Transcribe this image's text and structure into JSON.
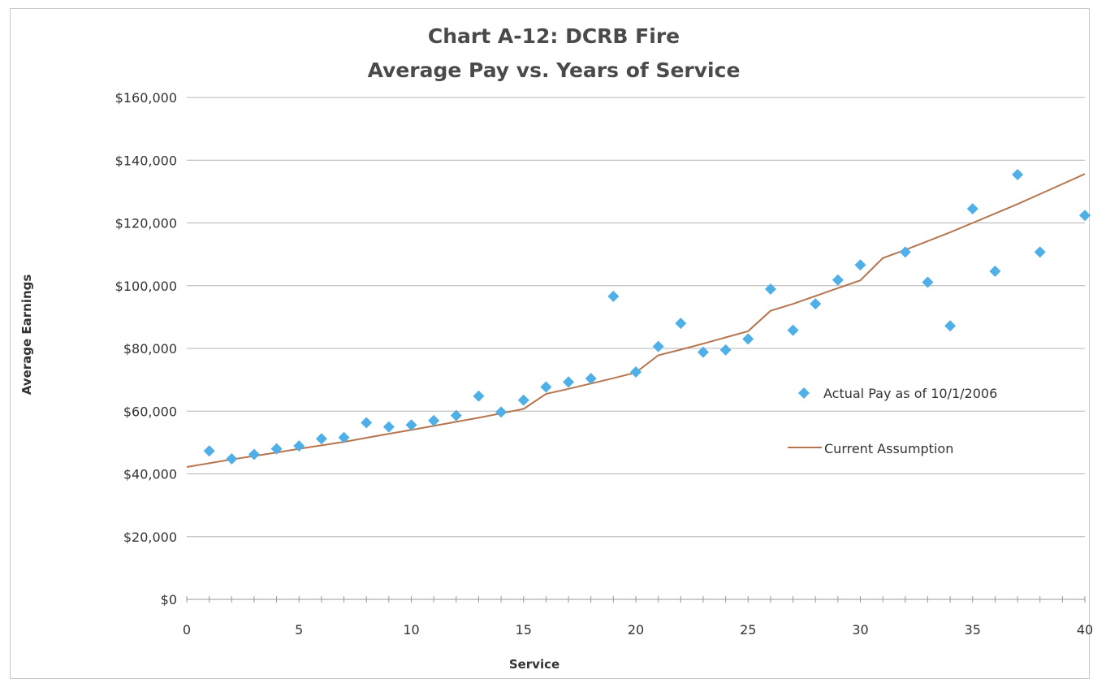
{
  "chart_data": {
    "type": "scatter",
    "title": "Chart A-12: DCRB Fire",
    "subtitle": "Average Pay vs. Years of Service",
    "xlabel": "Service",
    "ylabel": "Average Earnings",
    "xlim": [
      0,
      40
    ],
    "ylim": [
      0,
      160000
    ],
    "x_ticks": [
      "0",
      "5",
      "10",
      "15",
      "20",
      "25",
      "30",
      "35",
      "40"
    ],
    "y_ticks": [
      "$0",
      "$20,000",
      "$40,000",
      "$60,000",
      "$80,000",
      "$100,000",
      "$120,000",
      "$140,000",
      "$160,000"
    ],
    "grid": "horizontal",
    "legend_position": "right",
    "series": [
      {
        "name": "Actual Pay as of 10/1/2006",
        "kind": "scatter",
        "marker": "diamond",
        "color": "#4fb0e8",
        "points": [
          [
            1,
            47300
          ],
          [
            2,
            44800
          ],
          [
            3,
            46200
          ],
          [
            4,
            48000
          ],
          [
            5,
            48900
          ],
          [
            6,
            51200
          ],
          [
            7,
            51600
          ],
          [
            8,
            56300
          ],
          [
            9,
            55000
          ],
          [
            10,
            55600
          ],
          [
            11,
            57000
          ],
          [
            12,
            58600
          ],
          [
            13,
            64800
          ],
          [
            14,
            59700
          ],
          [
            15,
            63500
          ],
          [
            16,
            67700
          ],
          [
            17,
            69300
          ],
          [
            18,
            70400
          ],
          [
            19,
            96600
          ],
          [
            20,
            72500
          ],
          [
            21,
            80600
          ],
          [
            22,
            88000
          ],
          [
            23,
            78800
          ],
          [
            24,
            79500
          ],
          [
            25,
            83000
          ],
          [
            26,
            98900
          ],
          [
            27,
            85800
          ],
          [
            28,
            94200
          ],
          [
            29,
            101800
          ],
          [
            30,
            106600
          ],
          [
            32,
            110700
          ],
          [
            33,
            101100
          ],
          [
            34,
            87200
          ],
          [
            35,
            124500
          ],
          [
            36,
            104600
          ],
          [
            37,
            135400
          ],
          [
            38,
            110700
          ],
          [
            40,
            122400
          ]
        ]
      },
      {
        "name": "Current Assumption",
        "kind": "line",
        "color": "#b5764f",
        "points": [
          [
            0,
            42200
          ],
          [
            1,
            43400
          ],
          [
            2,
            44600
          ],
          [
            3,
            45700
          ],
          [
            4,
            46800
          ],
          [
            5,
            48000
          ],
          [
            6,
            49100
          ],
          [
            7,
            50200
          ],
          [
            8,
            51500
          ],
          [
            9,
            52800
          ],
          [
            10,
            54000
          ],
          [
            11,
            55300
          ],
          [
            12,
            56600
          ],
          [
            13,
            57900
          ],
          [
            14,
            59300
          ],
          [
            15,
            60700
          ],
          [
            16,
            65500
          ],
          [
            17,
            67100
          ],
          [
            18,
            68800
          ],
          [
            19,
            70500
          ],
          [
            20,
            72300
          ],
          [
            21,
            77800
          ],
          [
            22,
            79600
          ],
          [
            23,
            81500
          ],
          [
            24,
            83500
          ],
          [
            25,
            85500
          ],
          [
            26,
            92000
          ],
          [
            27,
            94200
          ],
          [
            28,
            96700
          ],
          [
            29,
            99200
          ],
          [
            30,
            101700
          ],
          [
            31,
            108800
          ],
          [
            32,
            111400
          ],
          [
            33,
            114200
          ],
          [
            34,
            117000
          ],
          [
            35,
            120000
          ],
          [
            36,
            123000
          ],
          [
            37,
            126000
          ],
          [
            38,
            129200
          ],
          [
            39,
            132400
          ],
          [
            40,
            135600
          ]
        ]
      }
    ]
  }
}
